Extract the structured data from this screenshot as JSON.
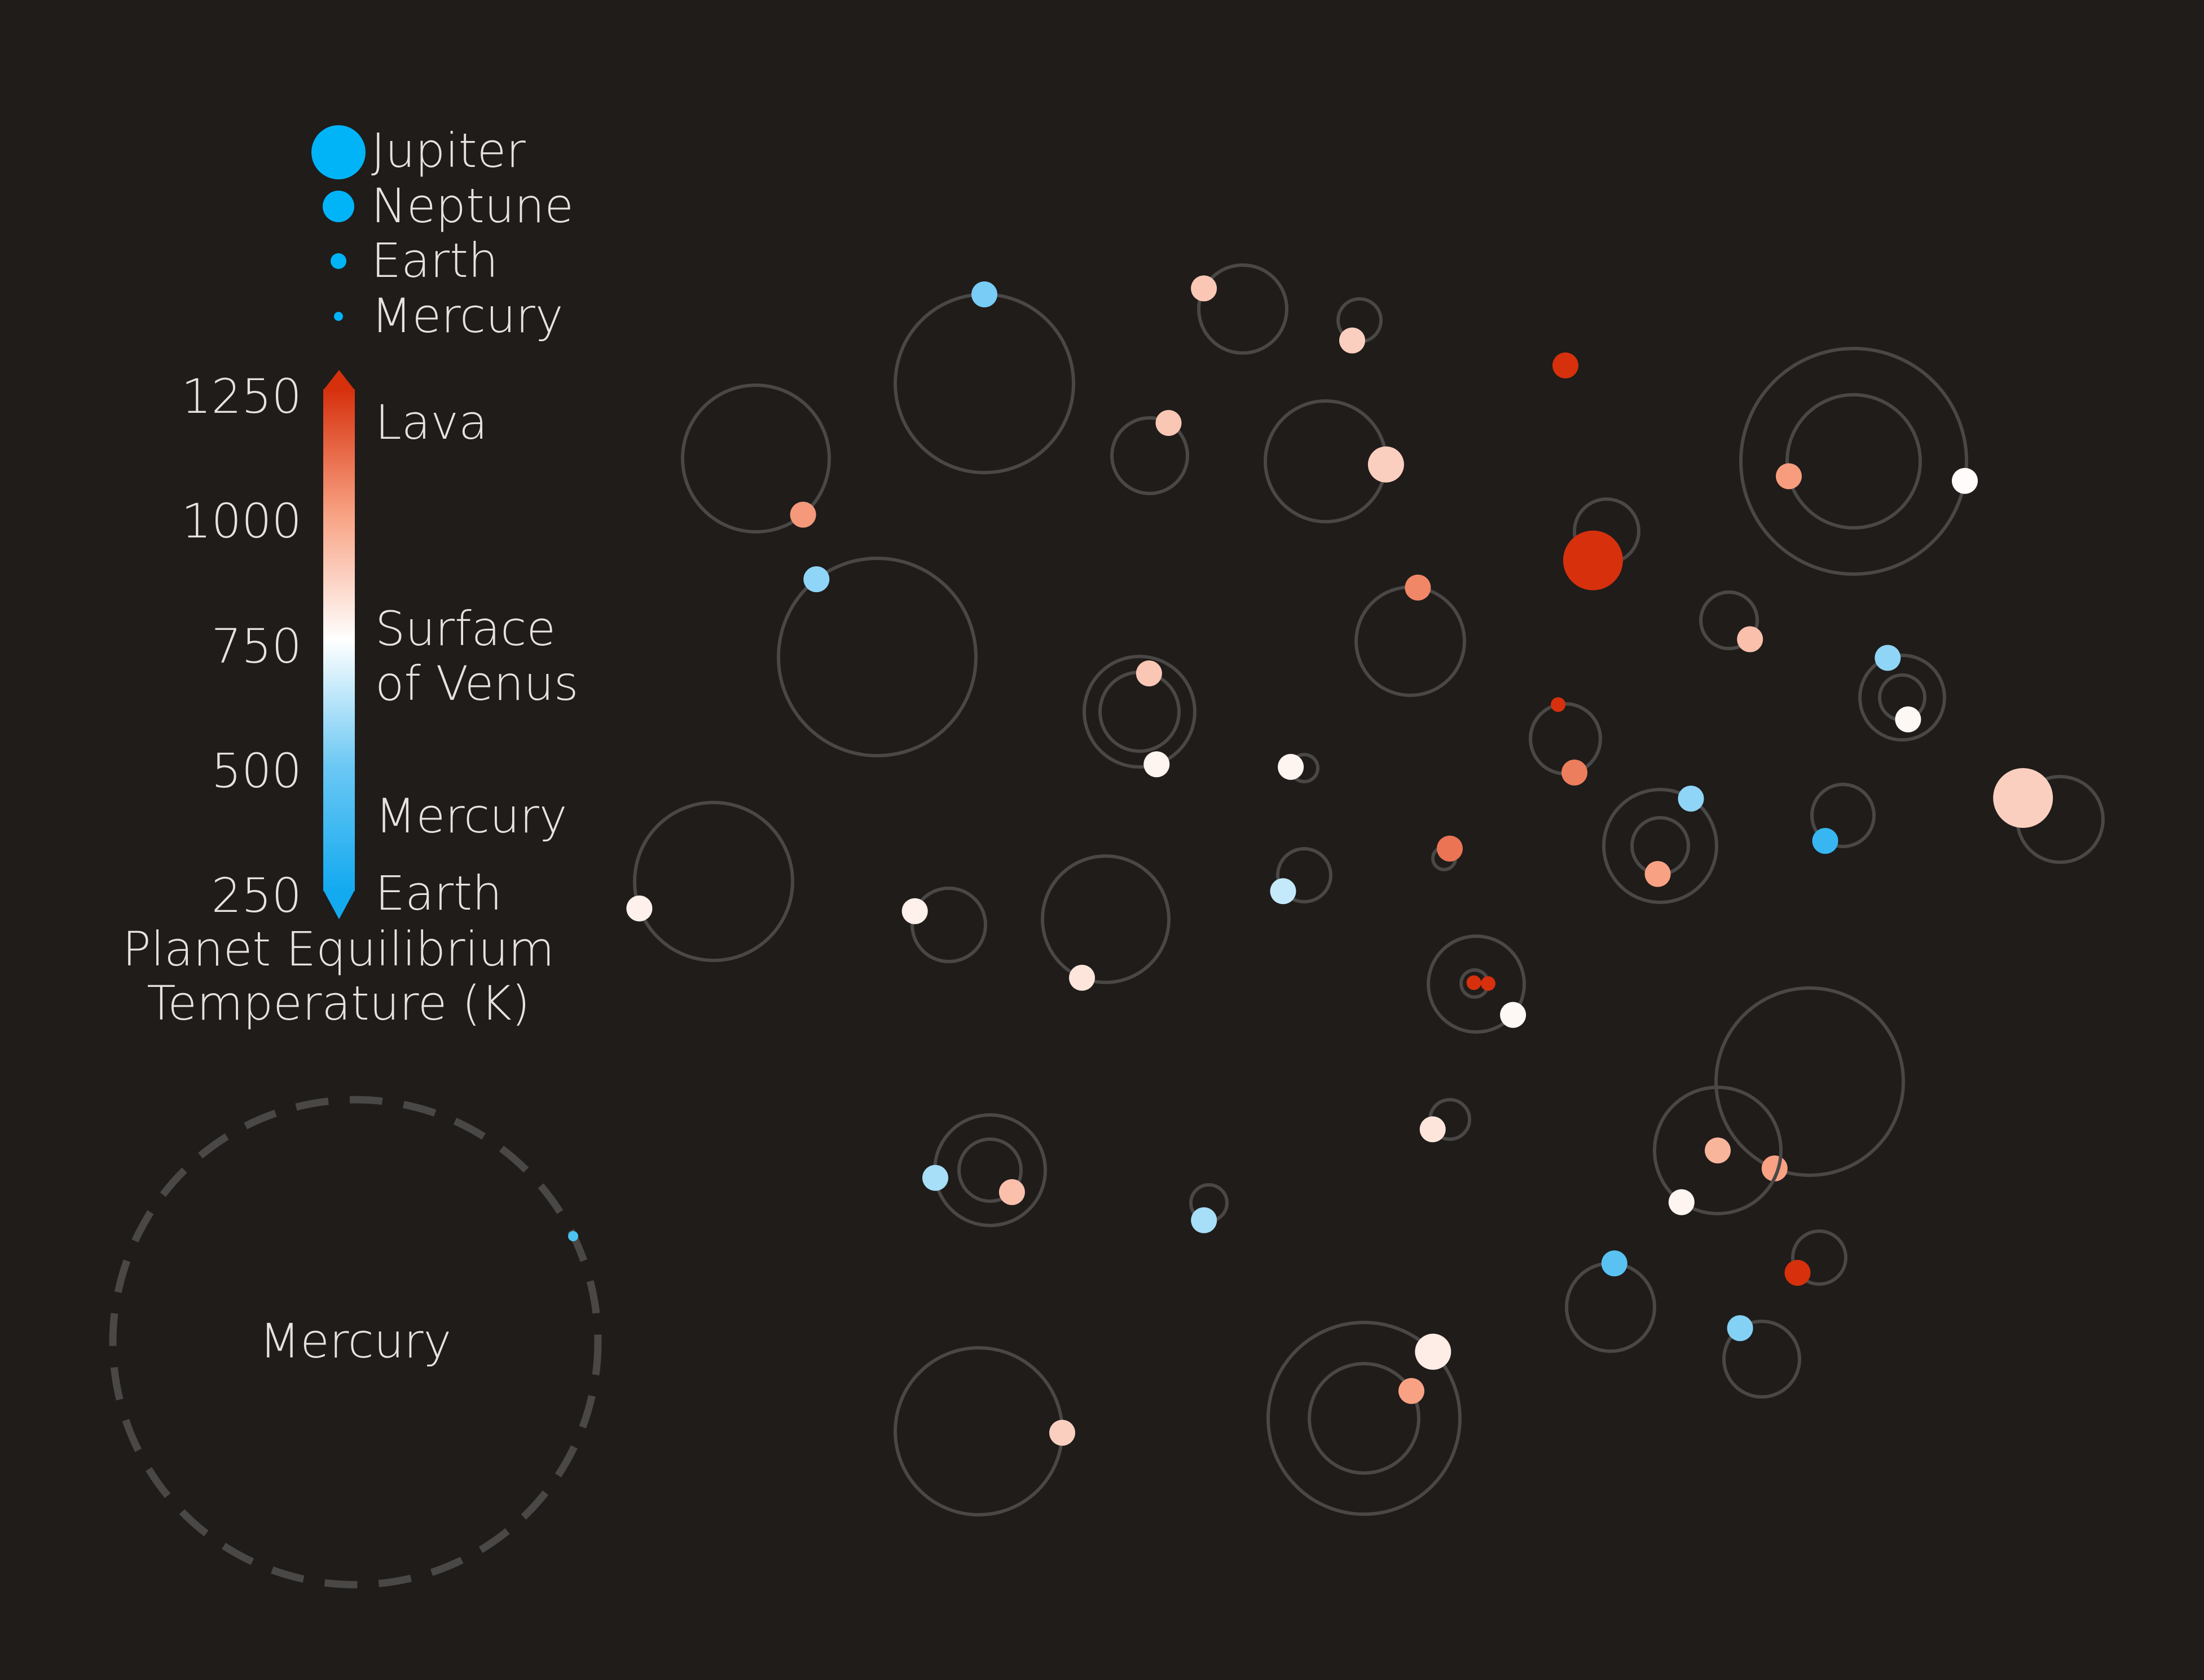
{
  "background": "#1f1c1a",
  "orbit_color": "#4a4846",
  "size_legend": {
    "color": "#00b4f7",
    "items": [
      {
        "label": "Jupiter",
        "size_class": "jupiter"
      },
      {
        "label": "Neptune",
        "size_class": "neptune"
      },
      {
        "label": "Earth",
        "size_class": "earth"
      },
      {
        "label": "Mercury",
        "size_class": "mercury"
      }
    ]
  },
  "colorbar": {
    "title_line1": "Planet Equilibrium",
    "title_line2": "Temperature (K)",
    "ticks": [
      "1250",
      "1000",
      "750",
      "500",
      "250"
    ],
    "range": [
      250,
      1250
    ],
    "gradient": [
      {
        "value": 250,
        "color": "#13aaf0"
      },
      {
        "value": 500,
        "color": "#6cc8f4"
      },
      {
        "value": 750,
        "color": "#ffffff"
      },
      {
        "value": 1000,
        "color": "#f8a283"
      },
      {
        "value": 1250,
        "color": "#d6300d"
      }
    ],
    "annotations": {
      "lava": "Lava",
      "venus_line1": "Surface",
      "venus_line2": "of Venus",
      "mercury": "Mercury",
      "earth": "Earth"
    }
  },
  "reference_orbit": {
    "label": "Mercury",
    "planet_color": "#4cc3f1"
  },
  "systems": [
    {
      "orbits": [
        {
          "planet": {
            "temp": 520,
            "size": "small"
          }
        }
      ]
    },
    {
      "orbits": [
        {
          "planet": {
            "temp": 900,
            "size": "small"
          }
        }
      ]
    },
    {
      "orbits": [
        {
          "planet": {
            "temp": 880,
            "size": "small"
          }
        }
      ]
    },
    {
      "orbits": [
        {
          "planet": {
            "temp": 1020,
            "size": "small"
          }
        }
      ]
    },
    {
      "orbits": [
        {
          "planet": {
            "temp": 900,
            "size": "small"
          }
        }
      ]
    },
    {
      "orbits": [
        {
          "planet": {
            "temp": 880,
            "size": "medium"
          }
        }
      ]
    },
    {
      "orbits": [
        {
          "planet": {
            "temp": 1250,
            "size": "small"
          }
        }
      ]
    },
    {
      "orbits": [
        {
          "planet": {
            "temp": 1250,
            "size": "large"
          }
        }
      ]
    },
    {
      "orbits": [
        {
          "planet": {
            "temp": 1010,
            "size": "small"
          }
        },
        {
          "planet": {
            "temp": 760,
            "size": "small"
          }
        }
      ]
    },
    {
      "orbits": [
        {
          "planet": {
            "temp": 560,
            "size": "small"
          }
        }
      ]
    },
    {
      "orbits": [
        {
          "planet": {
            "temp": 1060,
            "size": "small"
          }
        }
      ]
    },
    {
      "orbits": [
        {
          "planet": {
            "temp": 920,
            "size": "small"
          }
        }
      ]
    },
    {
      "orbits": [
        {
          "planet": {
            "temp": 900,
            "size": "small"
          }
        },
        {
          "planet": {
            "temp": 780,
            "size": "small"
          }
        }
      ]
    },
    {
      "orbits": [
        {
          "planet": {
            "temp": 780,
            "size": "small"
          }
        }
      ]
    },
    {
      "orbits": [
        {
          "planet": {
            "temp": 1250,
            "size": "tiny"
          }
        },
        {
          "planet": {
            "temp": 1080,
            "size": "small"
          }
        }
      ]
    },
    {
      "orbits": [
        {
          "planet": {
            "temp": 560,
            "size": "small"
          }
        },
        {
          "planet": {
            "temp": 770,
            "size": "small"
          }
        }
      ]
    },
    {
      "orbits": [
        {
          "planet": {
            "temp": 1000,
            "size": "small"
          }
        },
        {
          "planet": {
            "temp": 560,
            "size": "small"
          }
        }
      ]
    },
    {
      "orbits": [
        {
          "planet": {
            "temp": 790,
            "size": "small"
          }
        }
      ]
    },
    {
      "orbits": [
        {
          "planet": {
            "temp": 350,
            "size": "small"
          }
        }
      ]
    },
    {
      "orbits": [
        {
          "planet": {
            "temp": 880,
            "size": "large"
          }
        }
      ]
    },
    {
      "orbits": [
        {
          "planet": {
            "temp": 790,
            "size": "small"
          }
        }
      ]
    },
    {
      "orbits": [
        {
          "planet": {
            "temp": 820,
            "size": "small"
          }
        }
      ]
    },
    {
      "orbits": [
        {
          "planet": {
            "temp": 650,
            "size": "small"
          }
        }
      ]
    },
    {
      "orbits": [
        {
          "planet": {
            "temp": 1100,
            "size": "small"
          }
        }
      ]
    },
    {
      "orbits": [
        {
          "planet": {
            "temp": 1250,
            "size": "tiny"
          }
        }
      ]
    },
    {
      "orbits": [
        {
          "planet": {
            "temp": 1250,
            "size": "tiny"
          }
        },
        {
          "planet": {
            "temp": 770,
            "size": "small"
          }
        }
      ]
    },
    {
      "orbits": [
        {
          "planet": {
            "temp": 1000,
            "size": "small"
          }
        }
      ]
    },
    {
      "orbits": [
        {
          "planet": {
            "temp": 820,
            "size": "small"
          }
        }
      ]
    },
    {
      "orbits": [
        {
          "planet": {
            "temp": 780,
            "size": "small"
          }
        },
        {
          "planet": {
            "temp": 950,
            "size": "small"
          }
        }
      ]
    },
    {
      "orbits": [
        {
          "planet": {
            "temp": 920,
            "size": "small"
          }
        },
        {
          "planet": {
            "temp": 600,
            "size": "small"
          }
        }
      ]
    },
    {
      "orbits": [
        {
          "planet": {
            "temp": 600,
            "size": "small"
          }
        }
      ]
    },
    {
      "orbits": [
        {
          "planet": {
            "temp": 450,
            "size": "small"
          }
        }
      ]
    },
    {
      "orbits": [
        {
          "planet": {
            "temp": 1250,
            "size": "small"
          }
        }
      ]
    },
    {
      "orbits": [
        {
          "planet": {
            "temp": 540,
            "size": "small"
          }
        }
      ]
    },
    {
      "orbits": [
        {
          "planet": {
            "temp": 880,
            "size": "small"
          }
        }
      ]
    },
    {
      "orbits": [
        {
          "planet": {
            "temp": 1000,
            "size": "small"
          }
        },
        {
          "planet": {
            "temp": 800,
            "size": "medium"
          }
        }
      ]
    }
  ]
}
